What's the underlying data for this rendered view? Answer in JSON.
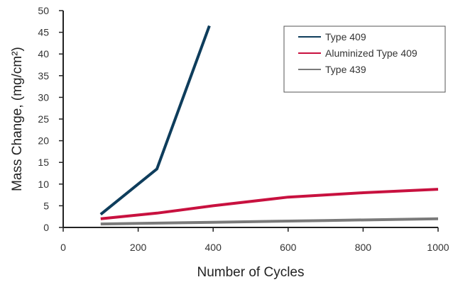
{
  "chart_data": {
    "type": "line",
    "title": "",
    "xlabel": "Number of Cycles",
    "ylabel": "Mass Change, (mg/cm²)",
    "xlim": [
      0,
      1000
    ],
    "ylim": [
      0,
      50
    ],
    "x_ticks": [
      "0",
      "200",
      "400",
      "600",
      "800",
      "1000"
    ],
    "y_ticks": [
      "0",
      "5",
      "10",
      "15",
      "20",
      "25",
      "30",
      "35",
      "40",
      "45",
      "50"
    ],
    "grid": false,
    "legend_position": "top-right",
    "series": [
      {
        "name": "Type 409",
        "color": "#0e3d5c",
        "points": [
          [
            100,
            3
          ],
          [
            250,
            13.5
          ],
          [
            390,
            46.5
          ]
        ]
      },
      {
        "name": "Aluminized Type 409",
        "color": "#c8113f",
        "points": [
          [
            100,
            2
          ],
          [
            250,
            3.3
          ],
          [
            400,
            5
          ],
          [
            600,
            7
          ],
          [
            800,
            8
          ],
          [
            1000,
            8.8
          ]
        ]
      },
      {
        "name": "Type 439",
        "color": "#7a7a7a",
        "points": [
          [
            100,
            0.8
          ],
          [
            400,
            1.2
          ],
          [
            700,
            1.6
          ],
          [
            1000,
            2
          ]
        ]
      }
    ]
  }
}
